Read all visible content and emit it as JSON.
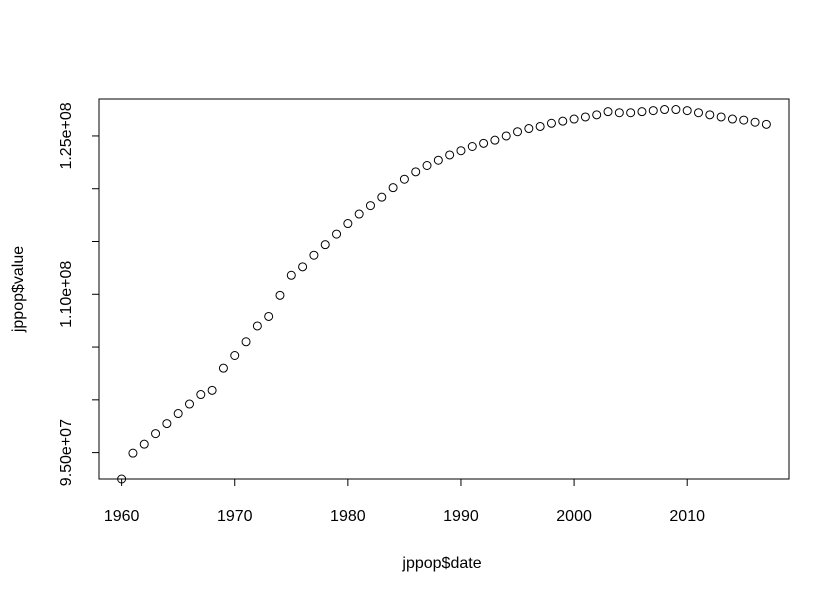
{
  "chart_data": {
    "type": "scatter",
    "title": "",
    "xlabel": "jppop$date",
    "ylabel": "jppop$value",
    "xlim": [
      1958,
      2019
    ],
    "ylim": [
      92500000,
      128500000
    ],
    "x_ticks": [
      1960,
      1970,
      1980,
      1990,
      2000,
      2010
    ],
    "x_tick_labels": [
      "1960",
      "1970",
      "1980",
      "1990",
      "2000",
      "2010"
    ],
    "y_ticks": [
      95000000,
      100000000,
      105000000,
      110000000,
      115000000,
      120000000,
      125000000
    ],
    "y_tick_labels": [
      "9.50e+07",
      "",
      "",
      "1.10e+08",
      "",
      "",
      "1.25e+08"
    ],
    "grid": false,
    "legend": "none",
    "marker": "open-circle",
    "x": [
      1960,
      1961,
      1962,
      1963,
      1964,
      1965,
      1966,
      1967,
      1968,
      1969,
      1970,
      1971,
      1972,
      1973,
      1974,
      1975,
      1976,
      1977,
      1978,
      1979,
      1980,
      1981,
      1982,
      1983,
      1984,
      1985,
      1986,
      1987,
      1988,
      1989,
      1990,
      1991,
      1992,
      1993,
      1994,
      1995,
      1996,
      1997,
      1998,
      1999,
      2000,
      2001,
      2002,
      2003,
      2004,
      2005,
      2006,
      2007,
      2008,
      2009,
      2010,
      2011,
      2012,
      2013,
      2014,
      2015,
      2016,
      2017
    ],
    "y": [
      92500000,
      94950000,
      95800000,
      96800000,
      97750000,
      98700000,
      99600000,
      100500000,
      100900000,
      103000000,
      104200000,
      105500000,
      107000000,
      107900000,
      109900000,
      111800000,
      112600000,
      113700000,
      114700000,
      115700000,
      116700000,
      117600000,
      118400000,
      119200000,
      120100000,
      120900000,
      121600000,
      122200000,
      122700000,
      123200000,
      123600000,
      124000000,
      124300000,
      124600000,
      125000000,
      125400000,
      125700000,
      125900000,
      126200000,
      126400000,
      126600000,
      126800000,
      127000000,
      127300000,
      127200000,
      127200000,
      127300000,
      127400000,
      127500000,
      127500000,
      127400000,
      127200000,
      127000000,
      126800000,
      126600000,
      126500000,
      126300000,
      126100000
    ]
  }
}
